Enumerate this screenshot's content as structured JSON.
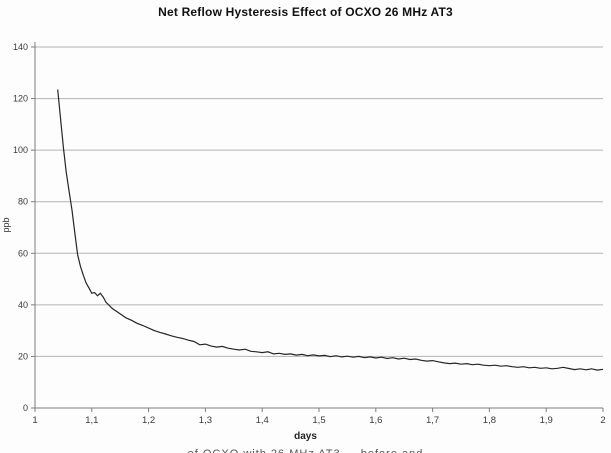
{
  "page": {
    "background": "#fdfdfd"
  },
  "chart_data": {
    "type": "line",
    "title": "Net Reflow Hysteresis Effect of OCXO 26 MHz AT3",
    "xlabel": "days",
    "ylabel": "ppb",
    "xlim": [
      1,
      2
    ],
    "ylim": [
      0,
      140
    ],
    "x_tick_values": [
      1,
      1.1,
      1.2,
      1.3,
      1.4,
      1.5,
      1.6,
      1.7,
      1.8,
      1.9,
      2
    ],
    "x_tick_labels": [
      "1",
      "1,1",
      "1,2",
      "1,3",
      "1,4",
      "1,5",
      "1,6",
      "1,7",
      "1,8",
      "1,9",
      "2"
    ],
    "y_tick_values": [
      0,
      20,
      40,
      60,
      80,
      100,
      120,
      140
    ],
    "grid": "horizontal-only",
    "legend": "none",
    "line_color": "#262626",
    "grid_color": "#b3b3b3",
    "axis_color": "#7d7d7d",
    "tick_label_color": "#3a3a3a",
    "series": [
      {
        "name": "net reflow hysteresis",
        "points": [
          [
            1.04,
            123.5
          ],
          [
            1.045,
            112
          ],
          [
            1.05,
            101
          ],
          [
            1.055,
            91.5
          ],
          [
            1.06,
            84
          ],
          [
            1.065,
            77
          ],
          [
            1.07,
            68
          ],
          [
            1.075,
            59.5
          ],
          [
            1.08,
            55
          ],
          [
            1.085,
            51.5
          ],
          [
            1.09,
            48.5
          ],
          [
            1.095,
            46.5
          ],
          [
            1.1,
            44.5
          ],
          [
            1.105,
            44.8
          ],
          [
            1.11,
            43.5
          ],
          [
            1.115,
            44.5
          ],
          [
            1.12,
            43
          ],
          [
            1.125,
            41
          ],
          [
            1.13,
            40
          ],
          [
            1.135,
            38.8
          ],
          [
            1.14,
            38
          ],
          [
            1.15,
            36.5
          ],
          [
            1.16,
            35
          ],
          [
            1.17,
            34
          ],
          [
            1.18,
            32.8
          ],
          [
            1.19,
            32
          ],
          [
            1.2,
            31
          ],
          [
            1.21,
            30
          ],
          [
            1.22,
            29.3
          ],
          [
            1.23,
            28.7
          ],
          [
            1.24,
            28
          ],
          [
            1.25,
            27.4
          ],
          [
            1.26,
            27
          ],
          [
            1.27,
            26.3
          ],
          [
            1.28,
            25.8
          ],
          [
            1.29,
            24.5
          ],
          [
            1.3,
            24.8
          ],
          [
            1.31,
            24
          ],
          [
            1.32,
            23.6
          ],
          [
            1.33,
            23.9
          ],
          [
            1.34,
            23.2
          ],
          [
            1.35,
            22.8
          ],
          [
            1.36,
            22.5
          ],
          [
            1.37,
            22.8
          ],
          [
            1.38,
            22
          ],
          [
            1.39,
            21.8
          ],
          [
            1.4,
            21.5
          ],
          [
            1.41,
            21.8
          ],
          [
            1.42,
            21
          ],
          [
            1.43,
            21.2
          ],
          [
            1.44,
            20.8
          ],
          [
            1.45,
            21
          ],
          [
            1.46,
            20.5
          ],
          [
            1.47,
            20.8
          ],
          [
            1.48,
            20.3
          ],
          [
            1.49,
            20.6
          ],
          [
            1.5,
            20.2
          ],
          [
            1.51,
            20.4
          ],
          [
            1.52,
            19.9
          ],
          [
            1.53,
            20.3
          ],
          [
            1.54,
            19.8
          ],
          [
            1.55,
            20.1
          ],
          [
            1.56,
            19.7
          ],
          [
            1.57,
            20
          ],
          [
            1.58,
            19.5
          ],
          [
            1.59,
            19.8
          ],
          [
            1.6,
            19.4
          ],
          [
            1.61,
            19.7
          ],
          [
            1.62,
            19.2
          ],
          [
            1.63,
            19.5
          ],
          [
            1.64,
            19
          ],
          [
            1.65,
            19.3
          ],
          [
            1.66,
            18.8
          ],
          [
            1.67,
            19
          ],
          [
            1.68,
            18.5
          ],
          [
            1.69,
            18.2
          ],
          [
            1.7,
            18.4
          ],
          [
            1.71,
            17.9
          ],
          [
            1.72,
            17.5
          ],
          [
            1.73,
            17.2
          ],
          [
            1.74,
            17.4
          ],
          [
            1.75,
            17
          ],
          [
            1.76,
            17.2
          ],
          [
            1.77,
            16.8
          ],
          [
            1.78,
            17
          ],
          [
            1.79,
            16.6
          ],
          [
            1.8,
            16.4
          ],
          [
            1.81,
            16.6
          ],
          [
            1.82,
            16.2
          ],
          [
            1.83,
            16.4
          ],
          [
            1.84,
            16
          ],
          [
            1.85,
            15.8
          ],
          [
            1.86,
            16
          ],
          [
            1.87,
            15.6
          ],
          [
            1.88,
            15.8
          ],
          [
            1.89,
            15.4
          ],
          [
            1.9,
            15.6
          ],
          [
            1.91,
            15.2
          ],
          [
            1.92,
            15.4
          ],
          [
            1.93,
            15.8
          ],
          [
            1.94,
            15.3
          ],
          [
            1.95,
            14.9
          ],
          [
            1.96,
            15.2
          ],
          [
            1.97,
            14.8
          ],
          [
            1.98,
            15.2
          ],
          [
            1.99,
            14.7
          ],
          [
            2.0,
            15
          ]
        ]
      }
    ]
  },
  "footer": {
    "cutoff_caption": "… of OCXO with 26 MHz AT3 … before and …"
  }
}
